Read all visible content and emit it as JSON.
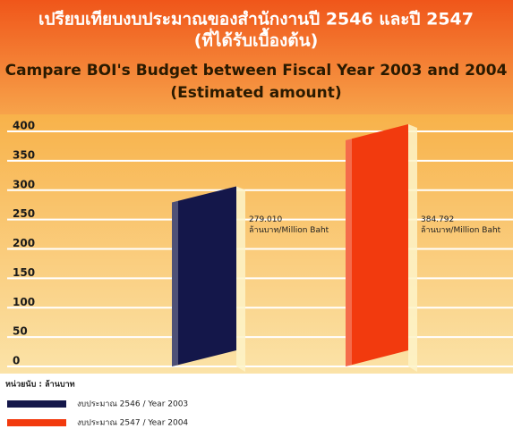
{
  "chart_data": {
    "type": "bar",
    "title": "เปรียบเทียบงบประมาณของสำนักงานปี 2546 และปี 2547",
    "title_note": "(ที่ได้รับเบื้องต้น)",
    "subtitle": "Campare BOI's Budget between Fiscal Year 2003 and 2004",
    "subtitle_note": "(Estimated amount)",
    "unit_note": "หน่วยนับ : ล้านบาท",
    "value_unit": "ล้านบาท/Million Baht",
    "categories": [
      null
    ],
    "series": [
      {
        "name": "งบประมาณ 2546 / Year 2003",
        "color": "#14174a",
        "values": [
          279.01
        ],
        "value_labels": [
          "279.010"
        ]
      },
      {
        "name": "งบประมาณ 2547 / Year 2004",
        "color": "#f23a0e",
        "values": [
          384.792
        ],
        "value_labels": [
          "384.792"
        ]
      }
    ],
    "ylim": [
      0,
      400
    ],
    "yticks": [
      0,
      50,
      100,
      150,
      200,
      250,
      300,
      350,
      400
    ],
    "grid": true
  }
}
